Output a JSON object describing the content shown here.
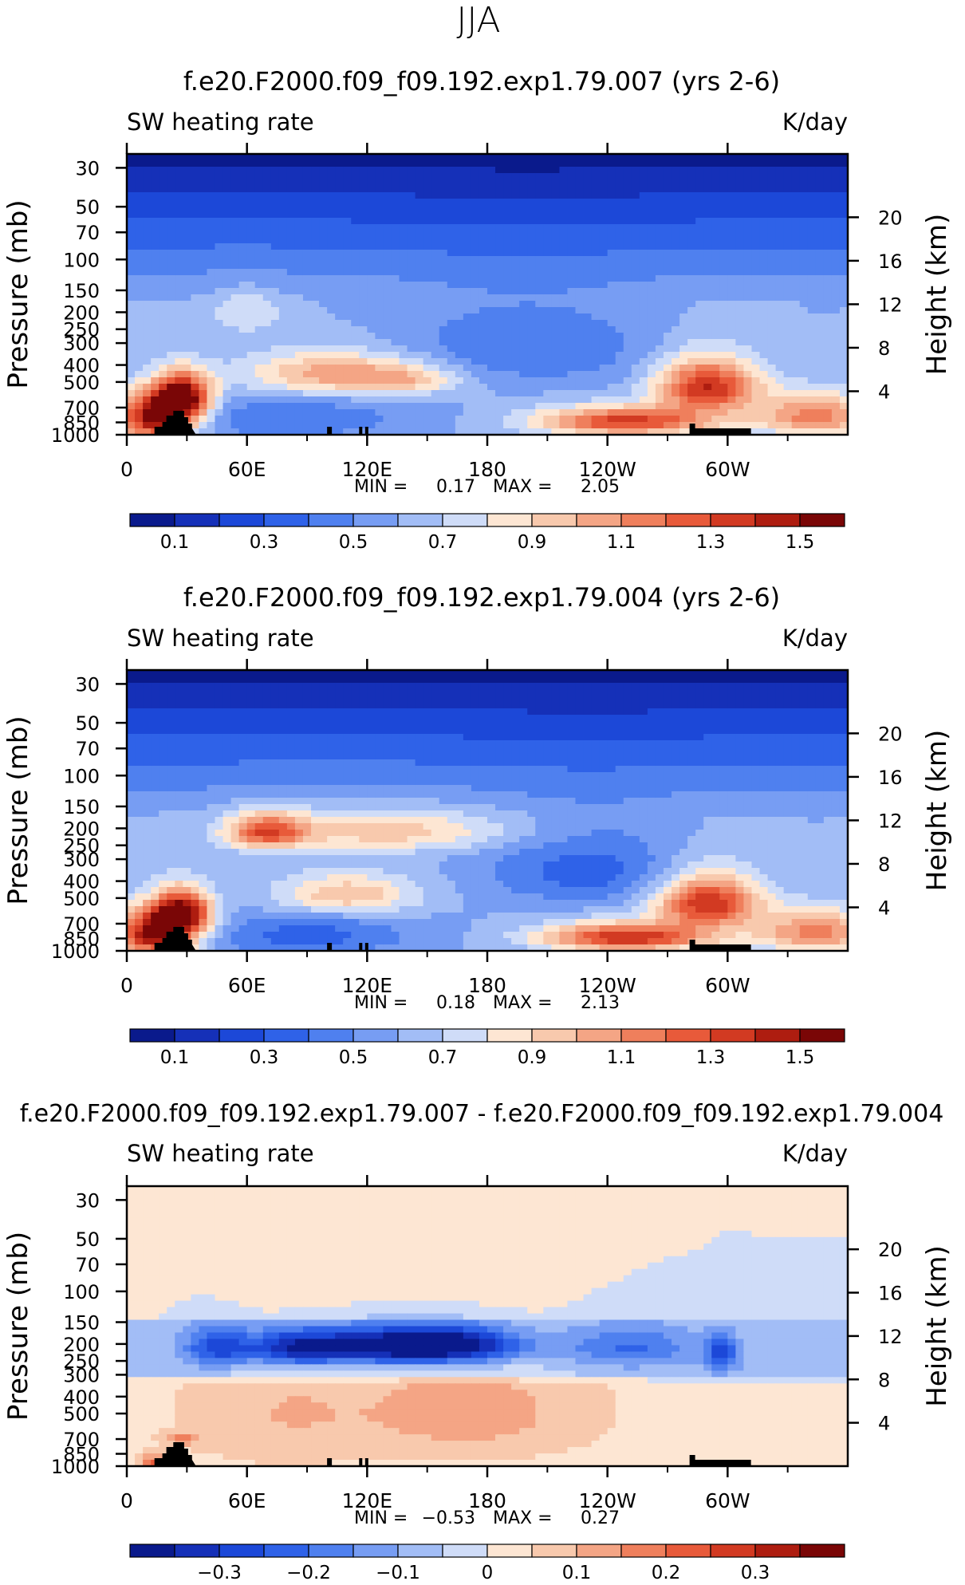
{
  "figure_title": "JJA",
  "chart_data": [
    {
      "type": "heatmap",
      "title": "f.e20.F2000.f09_f09.192.exp1.79.007 (yrs 2-6)",
      "left_label": "SW heating rate",
      "right_label": "K/day",
      "ylabel": "Pressure (mb)",
      "ylabel_right": "Height (km)",
      "x_ticks": [
        "0",
        "60E",
        "120E",
        "180",
        "120W",
        "60W"
      ],
      "x_range": [
        0,
        360
      ],
      "y_ticks": [
        "30",
        "50",
        "70",
        "100",
        "150",
        "200",
        "250",
        "300",
        "400",
        "500",
        "700",
        "850",
        "1000"
      ],
      "y_ticks_values": [
        30,
        50,
        70,
        100,
        150,
        200,
        250,
        300,
        400,
        500,
        700,
        850,
        1000
      ],
      "height_ticks": [
        "20",
        "16",
        "12",
        "8",
        "4"
      ],
      "height_values": [
        20,
        16,
        12,
        8,
        4
      ],
      "min_label": "MIN =",
      "min_value": "0.17",
      "max_label": "MAX =",
      "max_value": "2.05",
      "colorbar_labels": [
        "0.1",
        "0.3",
        "0.5",
        "0.7",
        "0.9",
        "1.1",
        "1.3",
        "1.5"
      ],
      "colorbar_levels": [
        0.1,
        0.2,
        0.3,
        0.4,
        0.5,
        0.6,
        0.7,
        0.8,
        0.9,
        1.0,
        1.1,
        1.2,
        1.3,
        1.4,
        1.5
      ],
      "colorbar_range": [
        0,
        1.6
      ],
      "blobs": [
        {
          "lon": 15,
          "p": 800,
          "amp": 1.0,
          "slon": 14,
          "sp": 170
        },
        {
          "lon": 28,
          "p": 600,
          "amp": 0.9,
          "slon": 10,
          "sp": 120
        },
        {
          "lon": 100,
          "p": 450,
          "amp": 0.45,
          "slon": 30,
          "sp": 90
        },
        {
          "lon": 140,
          "p": 480,
          "amp": 0.3,
          "slon": 20,
          "sp": 70
        },
        {
          "lon": 250,
          "p": 840,
          "amp": 0.75,
          "slon": 32,
          "sp": 110
        },
        {
          "lon": 290,
          "p": 530,
          "amp": 0.8,
          "slon": 18,
          "sp": 130
        },
        {
          "lon": 345,
          "p": 780,
          "amp": 0.55,
          "slon": 22,
          "sp": 150
        },
        {
          "lon": 60,
          "p": 200,
          "amp": 0.2,
          "slon": 12,
          "sp": 40
        },
        {
          "lon": 80,
          "p": 820,
          "amp": -0.2,
          "slon": 40,
          "sp": 150
        },
        {
          "lon": 200,
          "p": 320,
          "amp": -0.2,
          "slon": 45,
          "sp": 120
        }
      ]
    },
    {
      "type": "heatmap",
      "title": "f.e20.F2000.f09_f09.192.exp1.79.004 (yrs 2-6)",
      "left_label": "SW heating rate",
      "right_label": "K/day",
      "ylabel": "Pressure (mb)",
      "ylabel_right": "Height (km)",
      "x_ticks": [
        "0",
        "60E",
        "120E",
        "180",
        "120W",
        "60W"
      ],
      "x_range": [
        0,
        360
      ],
      "y_ticks": [
        "30",
        "50",
        "70",
        "100",
        "150",
        "200",
        "250",
        "300",
        "400",
        "500",
        "700",
        "850",
        "1000"
      ],
      "y_ticks_values": [
        30,
        50,
        70,
        100,
        150,
        200,
        250,
        300,
        400,
        500,
        700,
        850,
        1000
      ],
      "height_ticks": [
        "20",
        "16",
        "12",
        "8",
        "4"
      ],
      "height_values": [
        20,
        16,
        12,
        8,
        4
      ],
      "min_label": "MIN =",
      "min_value": "0.18",
      "max_label": "MAX =",
      "max_value": "2.13",
      "colorbar_labels": [
        "0.1",
        "0.3",
        "0.5",
        "0.7",
        "0.9",
        "1.1",
        "1.3",
        "1.5"
      ],
      "colorbar_levels": [
        0.1,
        0.2,
        0.3,
        0.4,
        0.5,
        0.6,
        0.7,
        0.8,
        0.9,
        1.0,
        1.1,
        1.2,
        1.3,
        1.4,
        1.5
      ],
      "colorbar_range": [
        0,
        1.6
      ],
      "blobs": [
        {
          "lon": 15,
          "p": 800,
          "amp": 1.0,
          "slon": 14,
          "sp": 170
        },
        {
          "lon": 28,
          "p": 600,
          "amp": 0.85,
          "slon": 10,
          "sp": 120
        },
        {
          "lon": 70,
          "p": 210,
          "amp": 0.6,
          "slon": 14,
          "sp": 35
        },
        {
          "lon": 130,
          "p": 210,
          "amp": 0.35,
          "slon": 45,
          "sp": 40
        },
        {
          "lon": 110,
          "p": 480,
          "amp": 0.4,
          "slon": 25,
          "sp": 90
        },
        {
          "lon": 250,
          "p": 840,
          "amp": 0.8,
          "slon": 30,
          "sp": 110
        },
        {
          "lon": 290,
          "p": 530,
          "amp": 0.8,
          "slon": 18,
          "sp": 130
        },
        {
          "lon": 345,
          "p": 780,
          "amp": 0.55,
          "slon": 22,
          "sp": 150
        },
        {
          "lon": 90,
          "p": 820,
          "amp": -0.25,
          "slon": 35,
          "sp": 150
        },
        {
          "lon": 230,
          "p": 350,
          "amp": -0.25,
          "slon": 35,
          "sp": 120
        }
      ]
    },
    {
      "type": "heatmap",
      "title": "f.e20.F2000.f09_f09.192.exp1.79.007 - f.e20.F2000.f09_f09.192.exp1.79.004",
      "left_label": "SW heating rate",
      "right_label": "K/day",
      "ylabel": "Pressure (mb)",
      "ylabel_right": "Height (km)",
      "x_ticks": [
        "0",
        "60E",
        "120E",
        "180",
        "120W",
        "60W"
      ],
      "x_range": [
        0,
        360
      ],
      "y_ticks": [
        "30",
        "50",
        "70",
        "100",
        "150",
        "200",
        "250",
        "300",
        "400",
        "500",
        "700",
        "850",
        "1000"
      ],
      "y_ticks_values": [
        30,
        50,
        70,
        100,
        150,
        200,
        250,
        300,
        400,
        500,
        700,
        850,
        1000
      ],
      "height_ticks": [
        "20",
        "16",
        "12",
        "8",
        "4"
      ],
      "height_values": [
        20,
        16,
        12,
        8,
        4
      ],
      "min_label": "MIN =",
      "min_value": "−0.53",
      "max_label": "MAX =",
      "max_value": "0.27",
      "colorbar_labels": [
        "−0.3",
        "−0.2",
        "−0.1",
        "0",
        "0.1",
        "0.2",
        "0.3"
      ],
      "colorbar_levels": [
        -0.35,
        -0.3,
        -0.25,
        -0.2,
        -0.15,
        -0.1,
        -0.05,
        0,
        0.05,
        0.1,
        0.15,
        0.2,
        0.25,
        0.3,
        0.35
      ],
      "colorbar_range": [
        -0.4,
        0.4
      ],
      "blobs": [
        {
          "lon": 45,
          "p": 210,
          "amp": -0.22,
          "slon": 12,
          "sp": 40
        },
        {
          "lon": 85,
          "p": 210,
          "amp": -0.32,
          "slon": 18,
          "sp": 35
        },
        {
          "lon": 125,
          "p": 205,
          "amp": -0.3,
          "slon": 20,
          "sp": 35
        },
        {
          "lon": 165,
          "p": 205,
          "amp": -0.38,
          "slon": 22,
          "sp": 35
        },
        {
          "lon": 250,
          "p": 210,
          "amp": -0.15,
          "slon": 25,
          "sp": 40
        },
        {
          "lon": 297,
          "p": 230,
          "amp": -0.2,
          "slon": 6,
          "sp": 40
        },
        {
          "lon": 170,
          "p": 500,
          "amp": 0.1,
          "slon": 35,
          "sp": 200
        },
        {
          "lon": 80,
          "p": 500,
          "amp": 0.06,
          "slon": 30,
          "sp": 250
        },
        {
          "lon": 15,
          "p": 950,
          "amp": 0.2,
          "slon": 5,
          "sp": 60
        },
        {
          "lon": 28,
          "p": 700,
          "amp": 0.12,
          "slon": 6,
          "sp": 40
        }
      ]
    }
  ]
}
